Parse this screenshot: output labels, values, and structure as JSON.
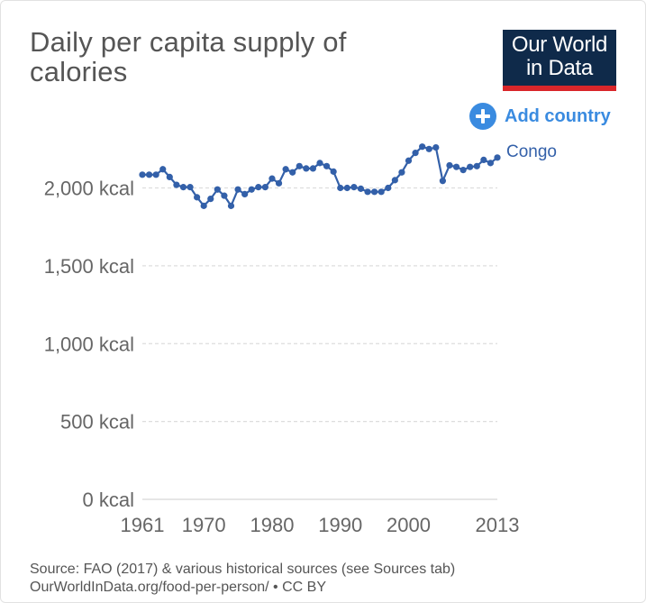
{
  "title": "Daily per capita supply of calories",
  "logo": {
    "line1": "Our World",
    "line2": "in Data"
  },
  "add_country_label": "Add country",
  "colors": {
    "series": "#3360a9",
    "logo_bg": "#0f2a4a",
    "logo_bar": "#d9262a",
    "accent": "#3a8be0",
    "grid": "#dddddd"
  },
  "source_line1": "Source: FAO (2017) & various historical sources (see Sources tab)",
  "source_line2": "OurWorldInData.org/food-per-person/ • CC BY",
  "chart_data": {
    "type": "line",
    "title": "Daily per capita supply of calories",
    "xlabel": "",
    "ylabel": "",
    "xlim": [
      1961,
      2013
    ],
    "ylim": [
      0,
      2000
    ],
    "y_ticks": [
      0,
      500,
      1000,
      1500,
      2000
    ],
    "y_tick_labels": [
      "0 kcal",
      "500 kcal",
      "1,000 kcal",
      "1,500 kcal",
      "2,000 kcal"
    ],
    "x_ticks": [
      1961,
      1970,
      1980,
      1990,
      2000,
      2013
    ],
    "x_tick_labels": [
      "1961",
      "1970",
      "1980",
      "1990",
      "2000",
      "2013"
    ],
    "grid": true,
    "legend": "end-of-line label",
    "series": [
      {
        "name": "Congo",
        "x": [
          1961,
          1962,
          1963,
          1964,
          1965,
          1966,
          1967,
          1968,
          1969,
          1970,
          1971,
          1972,
          1973,
          1974,
          1975,
          1976,
          1977,
          1978,
          1979,
          1980,
          1981,
          1982,
          1983,
          1984,
          1985,
          1986,
          1987,
          1988,
          1989,
          1990,
          1991,
          1992,
          1993,
          1994,
          1995,
          1996,
          1997,
          1998,
          1999,
          2000,
          2001,
          2002,
          2003,
          2004,
          2005,
          2006,
          2007,
          2008,
          2009,
          2010,
          2011,
          2012,
          2013
        ],
        "values": [
          2085,
          2085,
          2085,
          2120,
          2070,
          2020,
          2005,
          2005,
          1940,
          1885,
          1930,
          1990,
          1950,
          1885,
          1990,
          1960,
          1990,
          2005,
          2005,
          2060,
          2030,
          2120,
          2100,
          2140,
          2125,
          2125,
          2160,
          2140,
          2105,
          2000,
          2000,
          2005,
          1995,
          1975,
          1975,
          1975,
          2000,
          2050,
          2100,
          2175,
          2225,
          2265,
          2250,
          2260,
          2045,
          2145,
          2135,
          2115,
          2135,
          2140,
          2180,
          2160,
          2195
        ]
      }
    ]
  }
}
